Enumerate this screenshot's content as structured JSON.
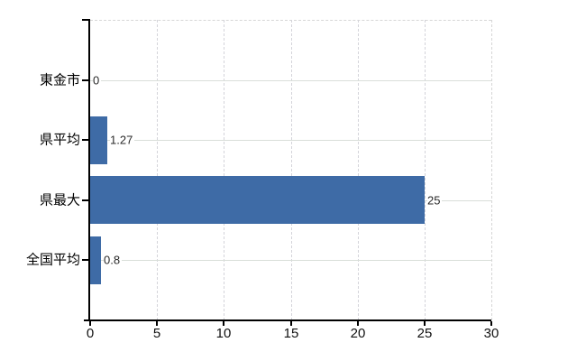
{
  "chart_data": {
    "type": "bar",
    "orientation": "horizontal",
    "title": "",
    "xlabel": "",
    "ylabel": "",
    "categories": [
      "東金市",
      "県平均",
      "県最大",
      "全国平均"
    ],
    "values": [
      0,
      1.27,
      25,
      0.8
    ],
    "value_labels": [
      "0",
      "1.27",
      "25",
      "0.8"
    ],
    "xlim": [
      0,
      30
    ],
    "x_ticks": [
      0,
      5,
      10,
      15,
      20,
      25,
      30
    ],
    "x_tick_labels": [
      "0",
      "5",
      "10",
      "15",
      "20",
      "25",
      "30"
    ],
    "grid": "on",
    "legend": "none",
    "colors": {
      "bar": "#3e6ba6",
      "axis": "#000000",
      "grid_horizontal": "#d9ded9",
      "grid_vertical": "#d4d4da",
      "plot_border_dashed": "#d6d6d6",
      "category_label": "#000000",
      "value_label": "#2a2a2a",
      "tick_label": "#111111",
      "background": "#ffffff"
    }
  }
}
